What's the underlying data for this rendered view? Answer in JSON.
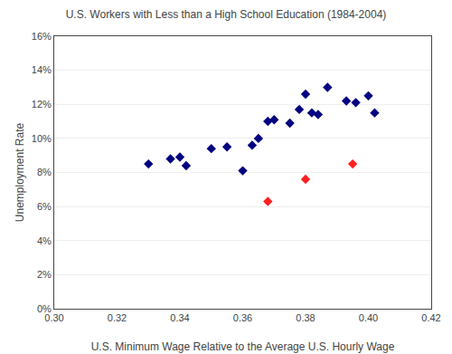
{
  "chart_data": {
    "type": "scatter",
    "title": "U.S. Workers with Less than a High School Education (1984-2004)",
    "xlabel": "U.S. Minimum Wage Relative to the Average U.S. Hourly Wage",
    "ylabel": "Unemployment Rate",
    "xlim": [
      0.3,
      0.42
    ],
    "ylim": [
      0.0,
      0.16
    ],
    "xticks": [
      {
        "value": 0.3,
        "label": "0.30"
      },
      0.32,
      0.34,
      0.36,
      0.38,
      {
        "value": 0.4,
        "label": "0.40"
      },
      0.42
    ],
    "yticks": [
      {
        "value": 0.0,
        "label": "0%"
      },
      {
        "value": 0.02,
        "label": "2%"
      },
      {
        "value": 0.04,
        "label": "4%"
      },
      {
        "value": 0.06,
        "label": "6%"
      },
      {
        "value": 0.08,
        "label": "8%"
      },
      {
        "value": 0.1,
        "label": "10%"
      },
      {
        "value": 0.12,
        "label": "12%"
      },
      {
        "value": 0.14,
        "label": "14%"
      },
      {
        "value": 0.16,
        "label": "16%"
      }
    ],
    "grid": "y",
    "marker": "diamond",
    "series": [
      {
        "color": "#000080",
        "x": [
          0.33,
          0.337,
          0.34,
          0.342,
          0.35,
          0.355,
          0.36,
          0.363,
          0.365,
          0.368,
          0.37,
          0.375,
          0.378,
          0.38,
          0.382,
          0.384,
          0.387,
          0.393,
          0.396,
          0.4,
          0.402
        ],
        "values": [
          0.085,
          0.088,
          0.089,
          0.084,
          0.094,
          0.095,
          0.081,
          0.096,
          0.1,
          0.11,
          0.111,
          0.109,
          0.117,
          0.126,
          0.115,
          0.114,
          0.13,
          0.122,
          0.121,
          0.125,
          0.115
        ]
      },
      {
        "color": "#FF2020",
        "x": [
          0.368,
          0.38,
          0.395
        ],
        "values": [
          0.063,
          0.076,
          0.085
        ]
      }
    ]
  }
}
